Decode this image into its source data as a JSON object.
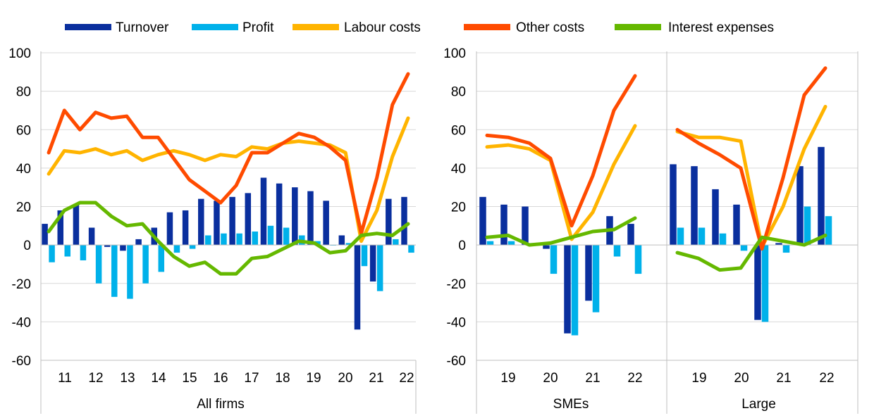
{
  "legend": [
    {
      "key": "turnover",
      "label": "Turnover",
      "color": "#0a2f9e",
      "kind": "bar"
    },
    {
      "key": "profit",
      "label": "Profit",
      "color": "#00b1ea",
      "kind": "bar"
    },
    {
      "key": "labour",
      "label": "Labour costs",
      "color": "#ffb400",
      "kind": "line"
    },
    {
      "key": "other",
      "label": "Other costs",
      "color": "#ff4b00",
      "kind": "line"
    },
    {
      "key": "interest",
      "label": "Interest expenses",
      "color": "#65b800",
      "kind": "line"
    }
  ],
  "chart_data": [
    {
      "type": "bar",
      "title": "All firms",
      "ylim": [
        -60,
        100
      ],
      "yticks": [
        -60,
        -40,
        -20,
        0,
        20,
        40,
        60,
        80,
        100
      ],
      "x_tick_labels": [
        "11",
        "12",
        "13",
        "14",
        "15",
        "16",
        "17",
        "18",
        "19",
        "20",
        "21",
        "22"
      ],
      "series": [
        {
          "key": "turnover",
          "values": [
            11,
            18,
            21,
            9,
            -1,
            -3,
            3,
            9,
            17,
            18,
            24,
            23,
            25,
            27,
            35,
            32,
            30,
            28,
            23,
            5,
            -44,
            -19,
            24,
            25
          ]
        },
        {
          "key": "profit",
          "values": [
            -9,
            -6,
            -8,
            -20,
            -27,
            -28,
            -20,
            -14,
            -4,
            -2,
            5,
            6,
            6,
            7,
            10,
            9,
            5,
            2,
            0,
            1,
            -11,
            -24,
            3,
            -4
          ]
        },
        {
          "key": "labour",
          "values": [
            37,
            49,
            48,
            50,
            47,
            49,
            44,
            47,
            49,
            47,
            44,
            47,
            46,
            51,
            50,
            53,
            54,
            53,
            52,
            48,
            2,
            18,
            46,
            66
          ]
        },
        {
          "key": "other",
          "values": [
            48,
            70,
            60,
            69,
            66,
            67,
            56,
            56,
            45,
            34,
            28,
            22,
            31,
            48,
            48,
            53,
            58,
            56,
            51,
            44,
            6,
            35,
            73,
            89
          ]
        },
        {
          "key": "interest",
          "values": [
            7,
            18,
            22,
            22,
            15,
            10,
            11,
            2,
            -6,
            -11,
            -9,
            -15,
            -15,
            -7,
            -6,
            -2,
            2,
            1,
            -4,
            -3,
            5,
            6,
            5,
            11
          ]
        }
      ]
    },
    {
      "type": "bar",
      "title": "SMEs",
      "ylim": [
        -60,
        100
      ],
      "yticks": [
        -60,
        -40,
        -20,
        0,
        20,
        40,
        60,
        80,
        100
      ],
      "x_tick_labels": [
        "19",
        "20",
        "21",
        "22"
      ],
      "series": [
        {
          "key": "turnover",
          "values": [
            25,
            21,
            20,
            -2,
            -46,
            -29,
            15,
            11
          ]
        },
        {
          "key": "profit",
          "values": [
            2,
            2,
            1,
            -15,
            -47,
            -35,
            -6,
            -15
          ]
        },
        {
          "key": "labour",
          "values": [
            51,
            52,
            50,
            44,
            3,
            17,
            42,
            62
          ]
        },
        {
          "key": "other",
          "values": [
            57,
            56,
            53,
            45,
            10,
            36,
            70,
            88
          ]
        },
        {
          "key": "interest",
          "values": [
            4,
            5,
            0,
            1,
            4,
            7,
            8,
            14
          ]
        }
      ]
    },
    {
      "type": "bar",
      "title": "Large",
      "ylim": [
        -60,
        100
      ],
      "x_tick_labels": [
        "19",
        "20",
        "21",
        "22"
      ],
      "series": [
        {
          "key": "turnover",
          "values": [
            42,
            41,
            29,
            21,
            -39,
            1,
            41,
            51
          ]
        },
        {
          "key": "profit",
          "values": [
            9,
            9,
            6,
            -3,
            -40,
            -4,
            20,
            15
          ]
        },
        {
          "key": "labour",
          "values": [
            59,
            56,
            56,
            54,
            -1,
            20,
            50,
            72
          ]
        },
        {
          "key": "other",
          "values": [
            60,
            53,
            47,
            40,
            -2,
            35,
            78,
            92
          ]
        },
        {
          "key": "interest",
          "values": [
            -4,
            -7,
            -13,
            -12,
            4,
            2,
            0,
            5
          ]
        }
      ]
    }
  ]
}
